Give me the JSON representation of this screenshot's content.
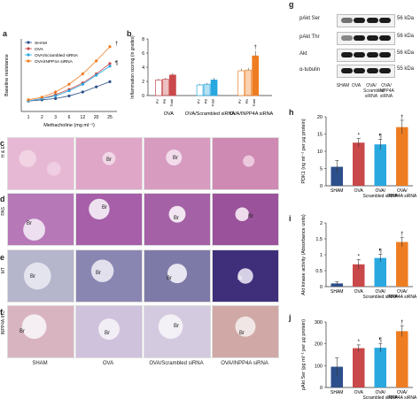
{
  "panels": {
    "a": "a",
    "b": "b",
    "c": "c",
    "d": "d",
    "e": "e",
    "f": "f",
    "g": "g",
    "h": "h",
    "i": "i",
    "j": "j"
  },
  "panel_a": {
    "ylabel": "Baseline resistance",
    "xlabel": "Methacholine (mg ml⁻¹)",
    "legend": [
      "SHAM",
      "OVA",
      "OVA/Scrambled siRNA",
      "OVA/INPP4A siRNA"
    ],
    "marks": [
      "†",
      "¶"
    ]
  },
  "panel_b": {
    "ylabel": "Inflammation scoring (in grades)",
    "groups": [
      "OVA",
      "OVA/Scrambled siRNA",
      "OVA/INPP4A siRNA"
    ],
    "subbars": [
      "PV",
      "PB",
      "Total"
    ],
    "mark": "†"
  },
  "micrographs": {
    "rows": [
      "H & E",
      "PAS",
      "MT",
      "INPP4A IHC"
    ],
    "columns": [
      "SHAM",
      "OVA",
      "OVA/Scrambled siRNA",
      "OVA/INPP4A siRNA"
    ],
    "br": "Br"
  },
  "western": {
    "labels": [
      "pAkt Ser",
      "pAkt Thr",
      "Akt",
      "α-tubulin"
    ],
    "kda": [
      "56 kDa",
      "56 kDa",
      "56 kDa",
      "55 kDa"
    ],
    "lanes": [
      "SHAM",
      "OVA",
      "OVA/ Scrambled siRNA",
      "OVA/ INPP4A siRNA"
    ]
  },
  "bar_categories": [
    "SHAM",
    "OVA",
    "OVA/Scrambled siRNA",
    "OVA/INPP4A siRNA"
  ],
  "bar_colors": [
    "#2d4f8b",
    "#c9484a",
    "#29a8e0",
    "#ee7d22"
  ],
  "chart_data": [
    {
      "id": "a",
      "type": "line",
      "x": [
        1,
        2,
        3,
        6,
        12,
        20,
        25
      ],
      "xlabel": "Methacholine (mg ml⁻¹)",
      "ylabel": "Baseline resistance",
      "series": [
        {
          "name": "SHAM",
          "color": "#2d4f8b",
          "values": [
            1.0,
            1.05,
            1.1,
            1.2,
            1.35,
            1.55,
            1.75
          ]
        },
        {
          "name": "OVA",
          "color": "#c9484a",
          "values": [
            1.0,
            1.1,
            1.25,
            1.45,
            1.7,
            2.05,
            2.45
          ]
        },
        {
          "name": "OVA/Scrambled siRNA",
          "color": "#29a8e0",
          "values": [
            1.0,
            1.1,
            1.2,
            1.4,
            1.65,
            2.0,
            2.35
          ]
        },
        {
          "name": "OVA/INPP4A siRNA",
          "color": "#ee7d22",
          "values": [
            1.05,
            1.15,
            1.35,
            1.65,
            2.05,
            2.55,
            3.1
          ]
        }
      ],
      "ylim": [
        0.6,
        3.4
      ]
    },
    {
      "id": "b",
      "type": "bar",
      "categories": [
        "OVA",
        "OVA/Scrambled siRNA",
        "OVA/INPP4A siRNA"
      ],
      "series": [
        {
          "name": "PV",
          "values": [
            2.2,
            1.5,
            3.5
          ]
        },
        {
          "name": "PB",
          "values": [
            2.3,
            1.6,
            3.6
          ]
        },
        {
          "name": "Total",
          "values": [
            2.9,
            2.2,
            5.6
          ]
        }
      ],
      "errors": [
        [
          0.2,
          0.15,
          0.3
        ],
        [
          0.2,
          0.2,
          0.3
        ],
        [
          0.3,
          0.3,
          0.7
        ]
      ],
      "ylim": [
        0,
        8
      ],
      "yticks": [
        0,
        2,
        4,
        6,
        8
      ],
      "ylabel": "Inflammation scoring (in grades)"
    },
    {
      "id": "h",
      "type": "bar",
      "categories": [
        "SHAM",
        "OVA",
        "OVA/Scrambled siRNA",
        "OVA/INPP4A siRNA"
      ],
      "values": [
        5.5,
        12.5,
        12.0,
        17.0
      ],
      "errors": [
        1.8,
        1.2,
        1.5,
        2.0
      ],
      "marks": [
        "",
        "*",
        "¶",
        "†"
      ],
      "ylim": [
        0,
        20
      ],
      "yticks": [
        0,
        5,
        10,
        15,
        20
      ],
      "ylabel": "PDK1 (ng ml⁻¹ per µg protein)"
    },
    {
      "id": "i",
      "type": "bar",
      "categories": [
        "SHAM",
        "OVA",
        "OVA/Scrambled siRNA",
        "OVA/INPP4A siRNA"
      ],
      "values": [
        0.1,
        0.7,
        0.9,
        1.4
      ],
      "errors": [
        0.05,
        0.15,
        0.12,
        0.15
      ],
      "marks": [
        "",
        "*",
        "¶",
        "†"
      ],
      "ylim": [
        0,
        2.0
      ],
      "yticks": [
        0,
        0.5,
        1.0,
        1.5,
        2.0
      ],
      "ylabel": "Akt kinase activity (Absorbance units)"
    },
    {
      "id": "j",
      "type": "bar",
      "categories": [
        "SHAM",
        "OVA",
        "OVA/Scrambled siRNA",
        "OVA/INPP4A siRNA"
      ],
      "values": [
        95,
        180,
        182,
        258
      ],
      "errors": [
        40,
        15,
        20,
        25
      ],
      "marks": [
        "",
        "*",
        "¶",
        "†"
      ],
      "ylim": [
        0,
        300
      ],
      "yticks": [
        0,
        100,
        200,
        300
      ],
      "ylabel": "pAkt Ser (pg ml⁻¹ per µg protein)"
    }
  ]
}
